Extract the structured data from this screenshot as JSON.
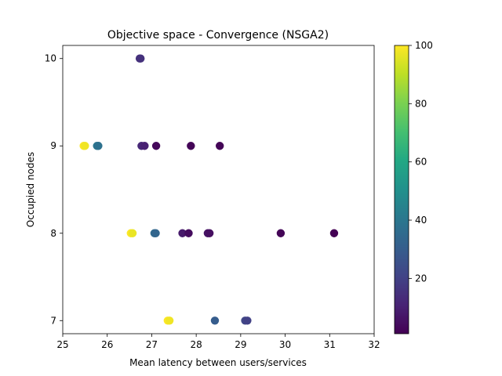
{
  "chart_data": {
    "type": "scatter",
    "title": "Objective space - Convergence (NSGA2)",
    "xlabel": "Mean latency between users/services",
    "ylabel": "Occupied nodes",
    "xlim": [
      25,
      32
    ],
    "ylim": [
      6.85,
      10.15
    ],
    "xticks": [
      25,
      26,
      27,
      28,
      29,
      30,
      31,
      32
    ],
    "yticks": [
      7,
      8,
      9,
      10
    ],
    "colorbar": {
      "cmap": "viridis",
      "range": [
        1,
        100
      ],
      "ticks": [
        20,
        40,
        60,
        80,
        100
      ]
    },
    "points": [
      {
        "x": 26.73,
        "y": 10,
        "c": 15
      },
      {
        "x": 26.75,
        "y": 10,
        "c": 15
      },
      {
        "x": 25.47,
        "y": 9,
        "c": 100
      },
      {
        "x": 25.5,
        "y": 9,
        "c": 98
      },
      {
        "x": 25.77,
        "y": 9,
        "c": 40
      },
      {
        "x": 25.8,
        "y": 9,
        "c": 38
      },
      {
        "x": 26.77,
        "y": 9,
        "c": 12
      },
      {
        "x": 26.84,
        "y": 9,
        "c": 10
      },
      {
        "x": 27.1,
        "y": 9,
        "c": 3
      },
      {
        "x": 27.88,
        "y": 9,
        "c": 2
      },
      {
        "x": 28.53,
        "y": 9,
        "c": 2
      },
      {
        "x": 26.53,
        "y": 8,
        "c": 100
      },
      {
        "x": 26.57,
        "y": 8,
        "c": 97
      },
      {
        "x": 27.06,
        "y": 8,
        "c": 35
      },
      {
        "x": 27.09,
        "y": 8,
        "c": 33
      },
      {
        "x": 27.69,
        "y": 8,
        "c": 8
      },
      {
        "x": 27.83,
        "y": 8,
        "c": 4
      },
      {
        "x": 28.26,
        "y": 8,
        "c": 6
      },
      {
        "x": 28.3,
        "y": 8,
        "c": 5
      },
      {
        "x": 29.9,
        "y": 8,
        "c": 2
      },
      {
        "x": 31.1,
        "y": 8,
        "c": 1
      },
      {
        "x": 27.36,
        "y": 7,
        "c": 100
      },
      {
        "x": 27.4,
        "y": 7,
        "c": 98
      },
      {
        "x": 28.42,
        "y": 7,
        "c": 30
      },
      {
        "x": 29.1,
        "y": 7,
        "c": 22
      },
      {
        "x": 29.15,
        "y": 7,
        "c": 20
      }
    ]
  }
}
